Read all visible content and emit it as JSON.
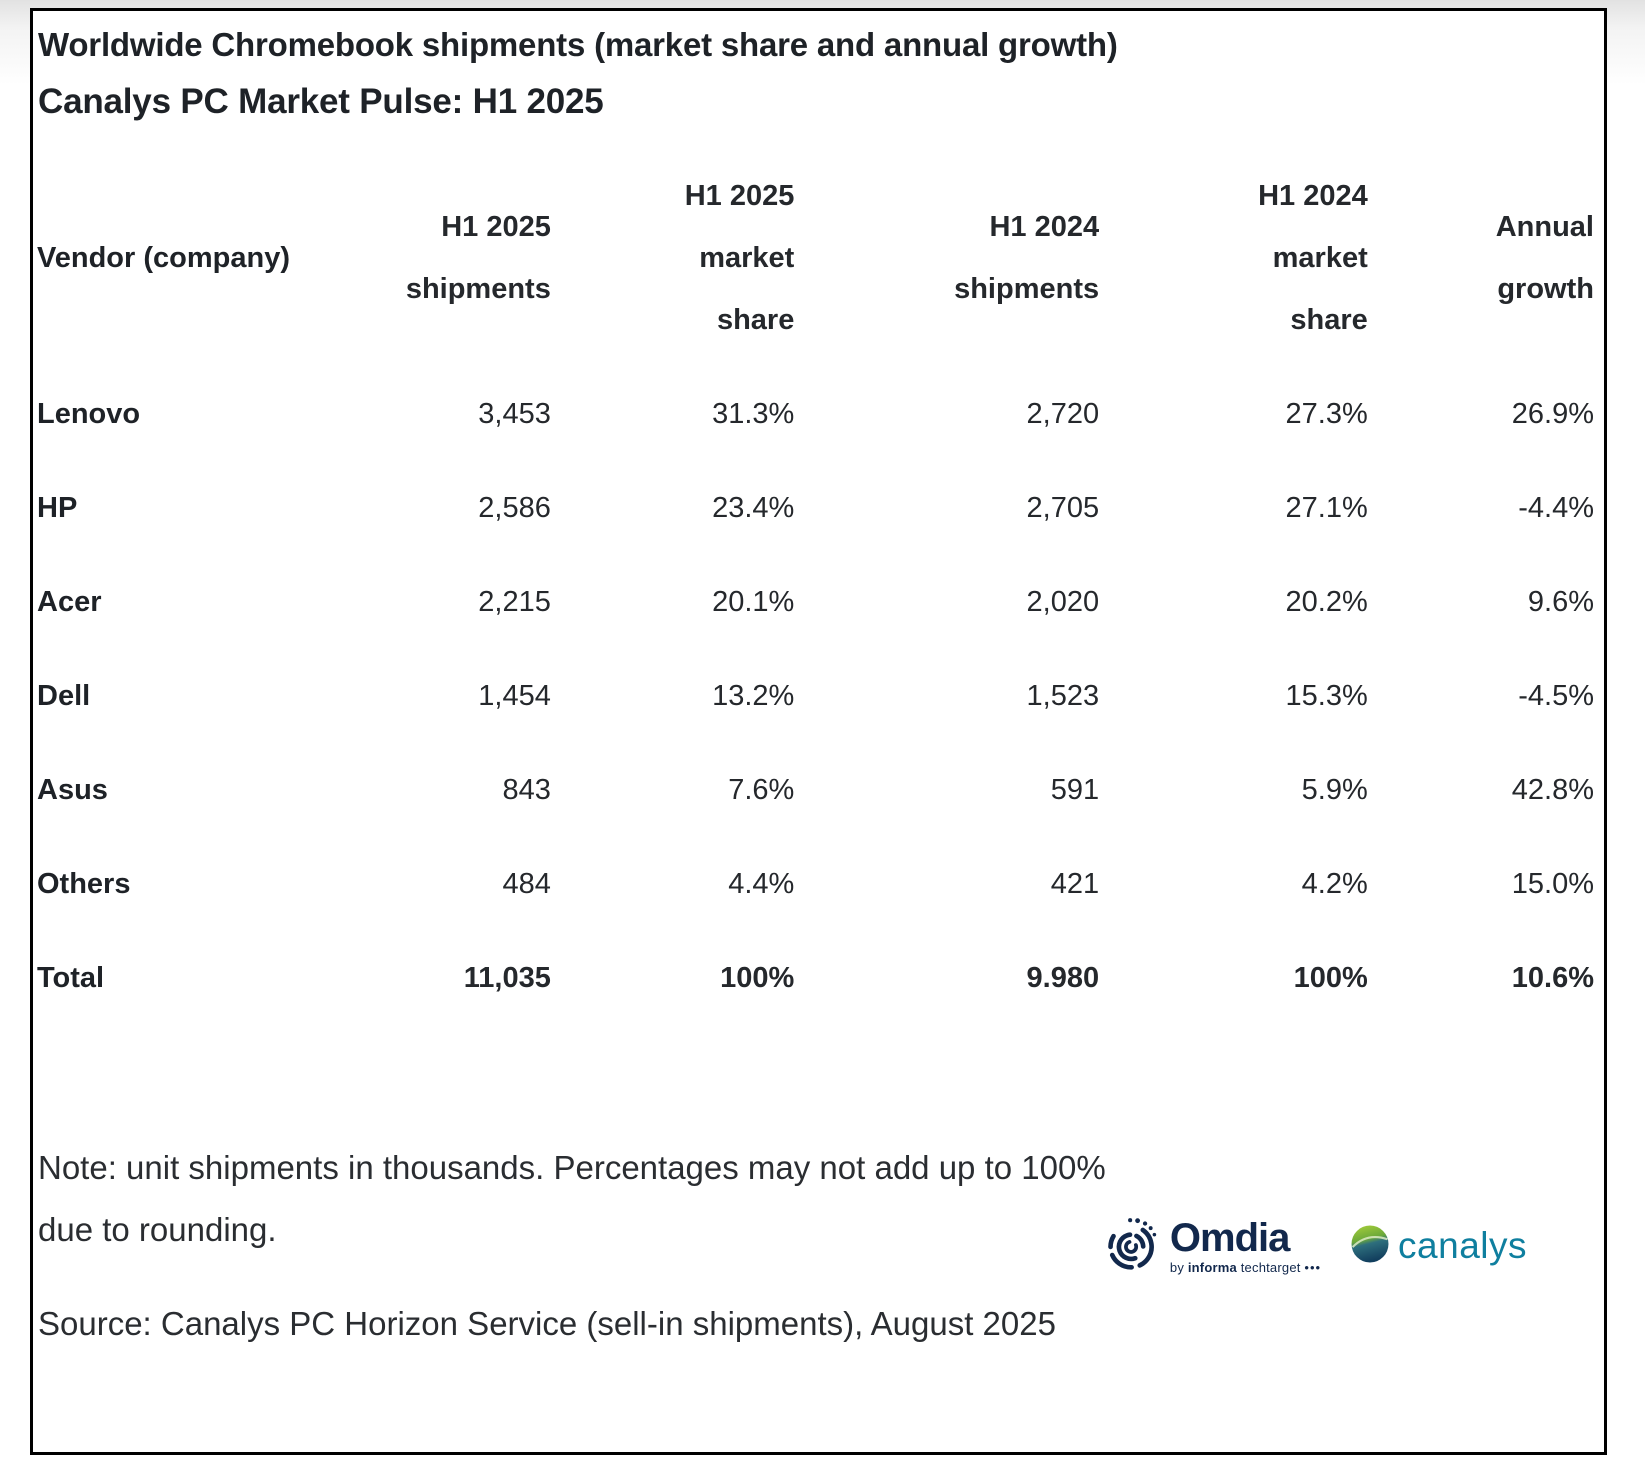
{
  "title": "Worldwide Chromebook shipments (market share and annual growth)",
  "subtitle": "Canalys PC Market Pulse: H1 2025",
  "chart_data": {
    "type": "table",
    "title": "Worldwide Chromebook shipments (market share and annual growth)",
    "subtitle": "Canalys PC Market Pulse: H1 2025",
    "units": "unit shipments in thousands",
    "columns": [
      "Vendor (company)",
      "H1 2025 shipments",
      "H1 2025 market share",
      "H1 2024 shipments",
      "H1 2024 market share",
      "Annual growth"
    ],
    "rows": [
      [
        "Lenovo",
        "3,453",
        "31.3%",
        "2,720",
        "27.3%",
        "26.9%"
      ],
      [
        "HP",
        "2,586",
        "23.4%",
        "2,705",
        "27.1%",
        "-4.4%"
      ],
      [
        "Acer",
        "2,215",
        "20.1%",
        "2,020",
        "20.2%",
        "9.6%"
      ],
      [
        "Dell",
        "1,454",
        "13.2%",
        "1,523",
        "15.3%",
        "-4.5%"
      ],
      [
        "Asus",
        "843",
        "7.6%",
        "591",
        "5.9%",
        "42.8%"
      ],
      [
        "Others",
        "484",
        "4.4%",
        "421",
        "4.2%",
        "15.0%"
      ],
      [
        "Total",
        "11,035",
        "100%",
        "9.980",
        "100%",
        "10.6%"
      ]
    ]
  },
  "header": {
    "col1": [
      "Vendor (company)"
    ],
    "col2": [
      "H1 2025",
      "shipments"
    ],
    "col3": [
      "H1 2025",
      "market",
      "share"
    ],
    "col4": [
      "H1 2024",
      "shipments"
    ],
    "col5": [
      "H1 2024",
      "market",
      "share"
    ],
    "col6": [
      "Annual",
      "growth"
    ]
  },
  "note": {
    "line1": "Note: unit shipments in thousands. Percentages may not add up to 100%",
    "line2": "due to rounding."
  },
  "source": "Source: Canalys PC Horizon Service (sell-in shipments), August 2025",
  "logos": {
    "omdia": {
      "name": "Omdia",
      "tagline_by": "by",
      "tagline_informa": "informa",
      "tagline_rest": "techtarget",
      "tagline_dots": "•••"
    },
    "canalys": {
      "name": "canalys"
    }
  },
  "colors": {
    "text": "#25282c",
    "border": "#000000",
    "omdia_navy": "#12284c",
    "canalys_teal": "#0f7f9f",
    "sphere_green": "#a6ce39",
    "sphere_blue": "#123f5e"
  }
}
